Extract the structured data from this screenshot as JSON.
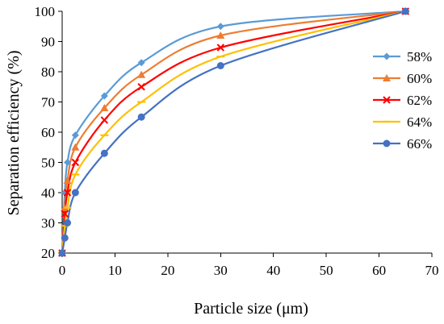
{
  "chart_data": {
    "type": "line",
    "title": "",
    "xlabel": "Particle size (μm)",
    "ylabel": "Separation efficiency (%)",
    "xlim": [
      0,
      70
    ],
    "ylim": [
      20,
      100
    ],
    "xticks": [
      0,
      10,
      20,
      30,
      40,
      50,
      60,
      70
    ],
    "yticks": [
      20,
      30,
      40,
      50,
      60,
      70,
      80,
      90,
      100
    ],
    "grid": false,
    "smooth": true,
    "legend_position": "right",
    "series": [
      {
        "name": "58%",
        "color": "#5b9bd5",
        "marker": "diamond",
        "points": [
          [
            0,
            20
          ],
          [
            0.5,
            40
          ],
          [
            1,
            50
          ],
          [
            2.5,
            59
          ],
          [
            8,
            72
          ],
          [
            15,
            83
          ],
          [
            30,
            95
          ],
          [
            65,
            100
          ]
        ]
      },
      {
        "name": "60%",
        "color": "#ed7d31",
        "marker": "triangle",
        "points": [
          [
            0,
            20
          ],
          [
            0.5,
            35
          ],
          [
            1,
            44
          ],
          [
            2.5,
            55
          ],
          [
            8,
            68
          ],
          [
            15,
            79
          ],
          [
            30,
            92
          ],
          [
            65,
            100
          ]
        ]
      },
      {
        "name": "62%",
        "color": "#ff0000",
        "marker": "x",
        "points": [
          [
            0,
            20
          ],
          [
            0.5,
            33
          ],
          [
            1,
            40
          ],
          [
            2.5,
            50
          ],
          [
            8,
            64
          ],
          [
            15,
            75
          ],
          [
            30,
            88
          ],
          [
            65,
            100
          ]
        ]
      },
      {
        "name": "64%",
        "color": "#ffc000",
        "marker": "dash",
        "points": [
          [
            0,
            20
          ],
          [
            0.5,
            29
          ],
          [
            1,
            35
          ],
          [
            2.5,
            46
          ],
          [
            8,
            59
          ],
          [
            15,
            70
          ],
          [
            30,
            85
          ],
          [
            65,
            100
          ]
        ]
      },
      {
        "name": "66%",
        "color": "#4472c4",
        "marker": "circle",
        "points": [
          [
            0,
            20
          ],
          [
            0.5,
            25
          ],
          [
            1,
            30
          ],
          [
            2.5,
            40
          ],
          [
            8,
            53
          ],
          [
            15,
            65
          ],
          [
            30,
            82
          ],
          [
            65,
            100
          ]
        ]
      }
    ]
  }
}
